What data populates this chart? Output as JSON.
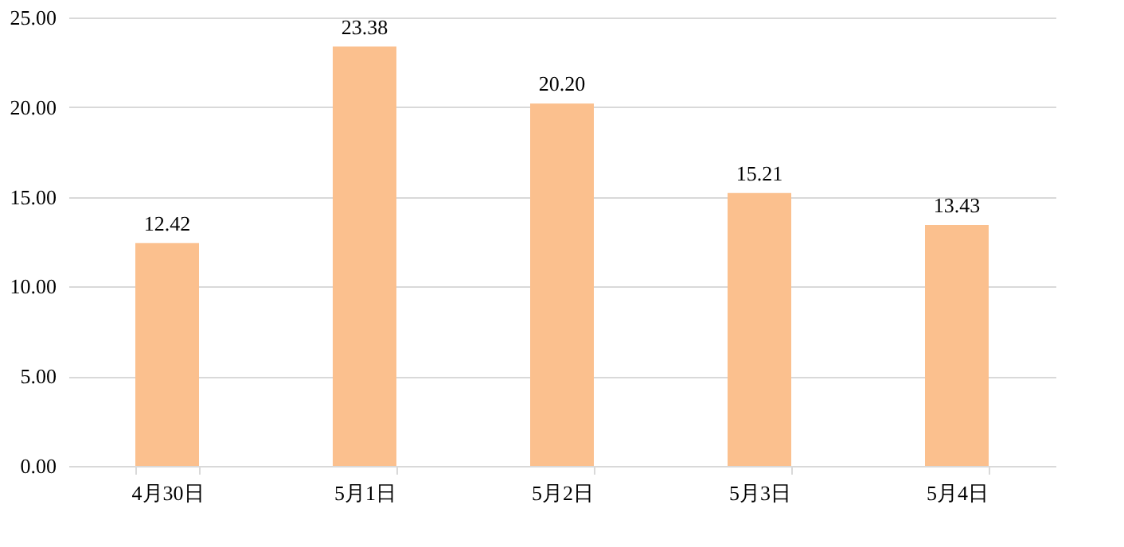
{
  "chart_data": {
    "type": "bar",
    "categories": [
      "4月30日",
      "5月1日",
      "5月2日",
      "5月3日",
      "5月4日"
    ],
    "values": [
      12.42,
      23.38,
      20.2,
      15.21,
      13.43
    ],
    "value_labels": [
      "12.42",
      "23.38",
      "20.20",
      "15.21",
      "13.43"
    ],
    "color": "#fbc08e",
    "ylim": [
      0,
      25
    ],
    "yticks": [
      {
        "value": 0,
        "label": "0.00"
      },
      {
        "value": 5,
        "label": "5.00"
      },
      {
        "value": 10,
        "label": "10.00"
      },
      {
        "value": 15,
        "label": "15.00"
      },
      {
        "value": 20,
        "label": "20.00"
      },
      {
        "value": 25,
        "label": "25.00"
      }
    ],
    "grid": "y"
  }
}
